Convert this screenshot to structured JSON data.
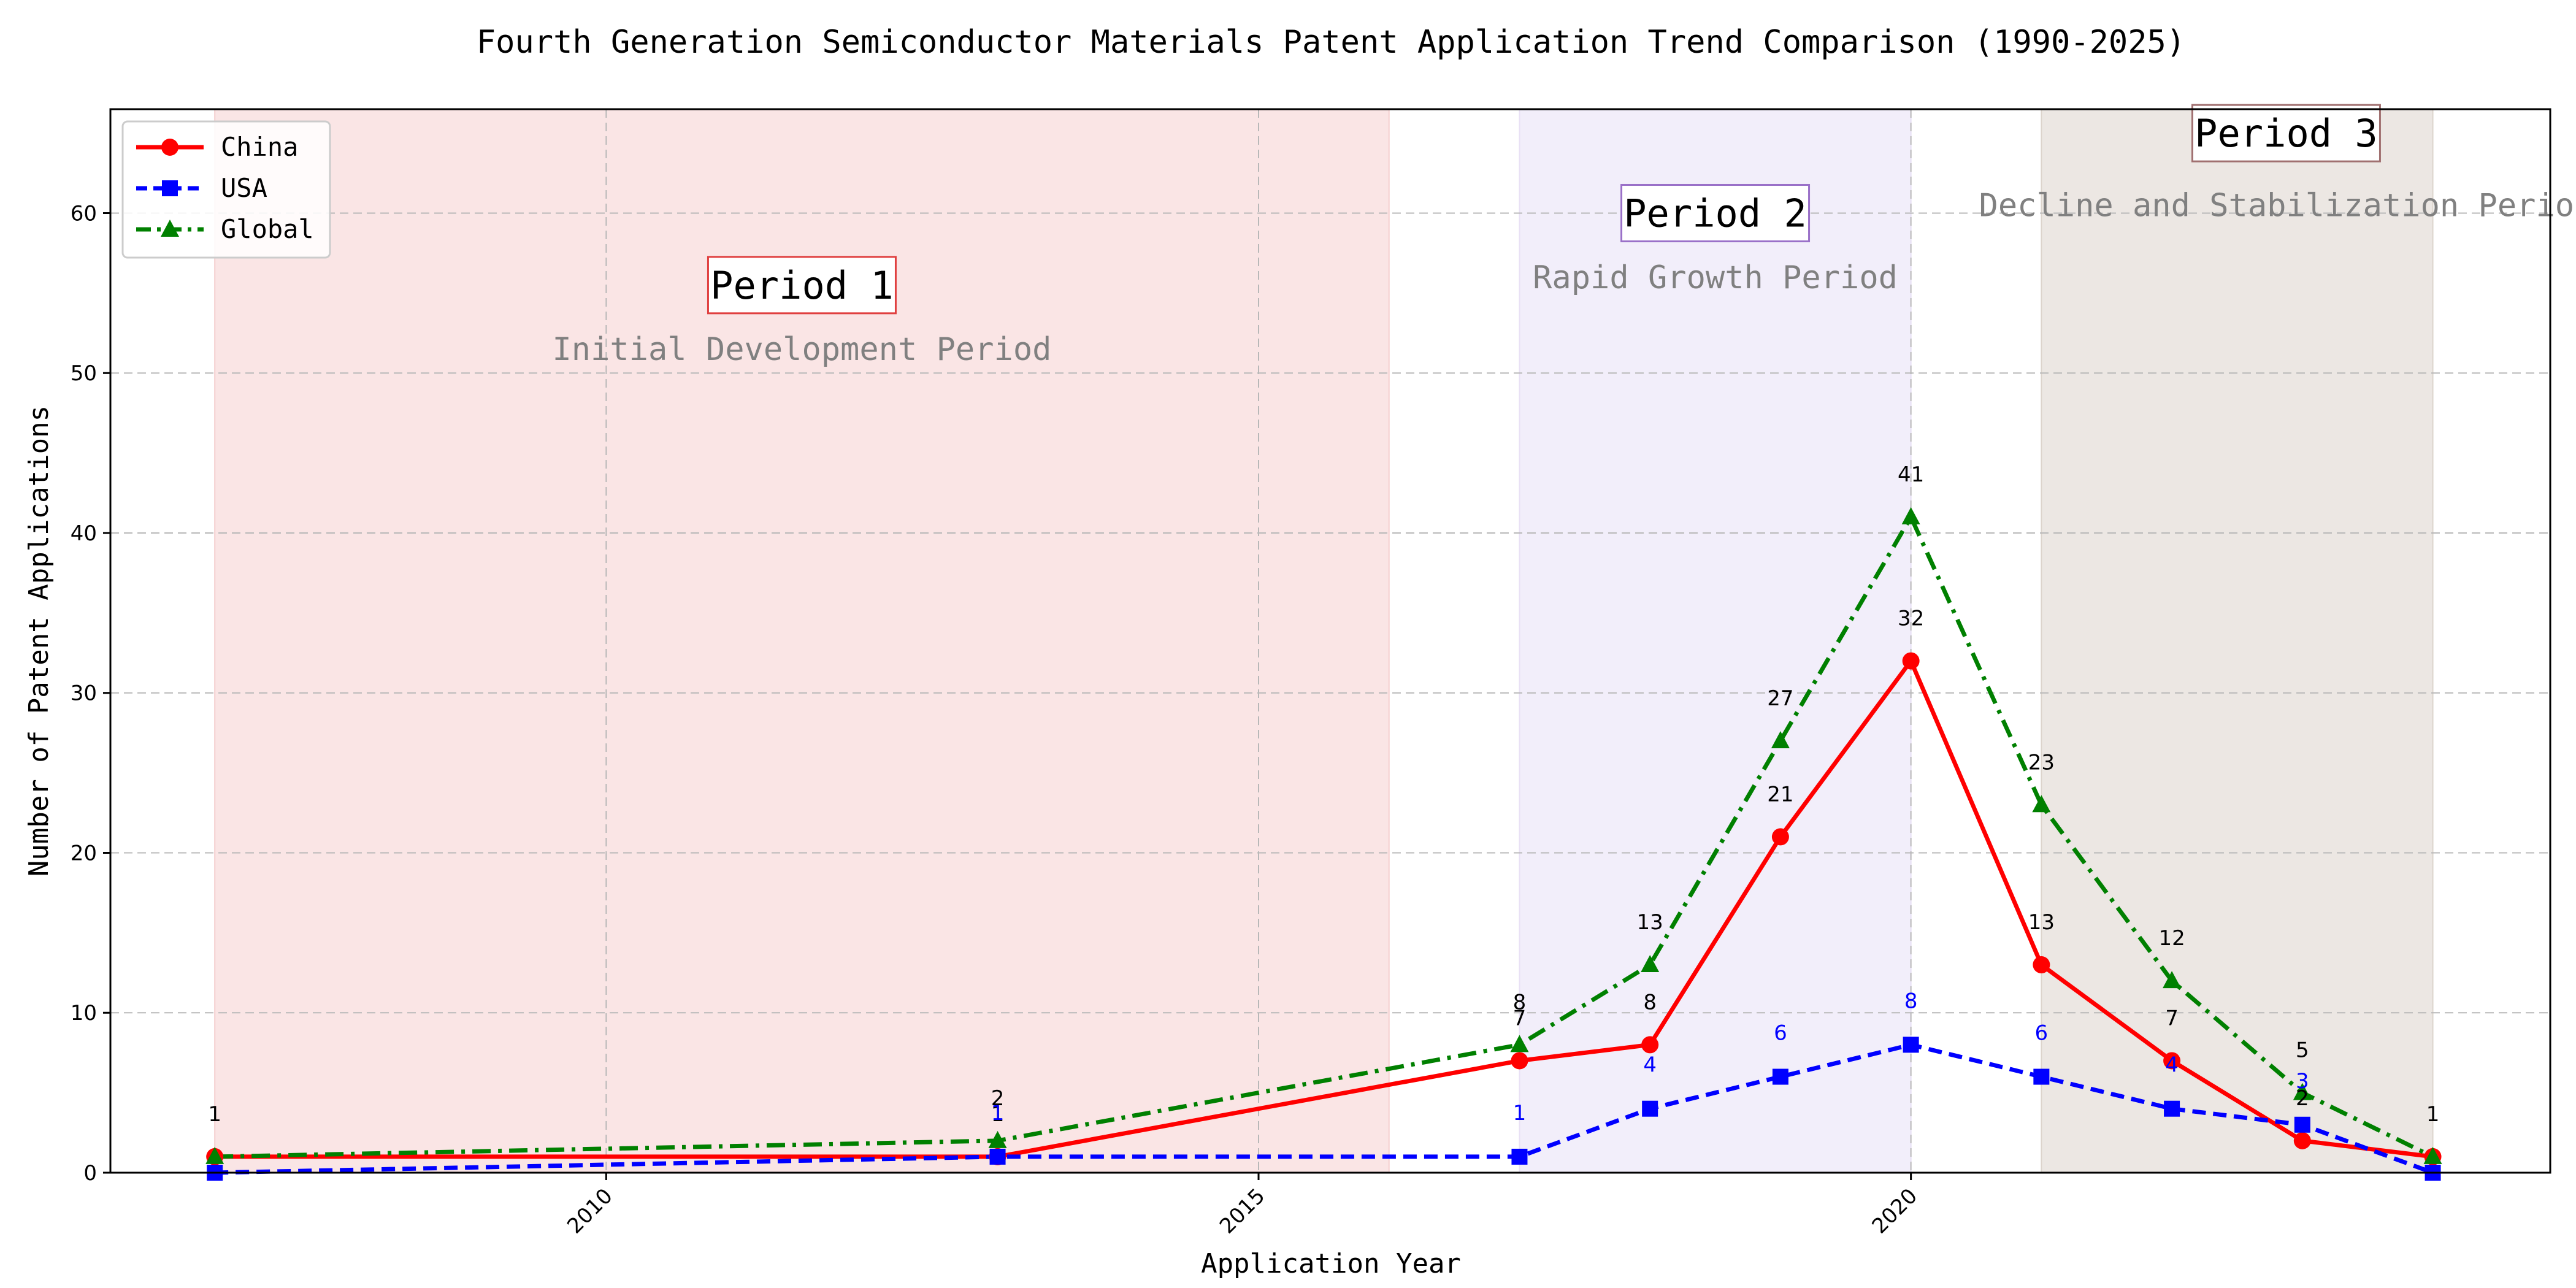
{
  "chart_data": {
    "type": "line",
    "title": "Fourth Generation Semiconductor Materials Patent Application Trend Comparison (1990-2025)",
    "xlabel": "Application Year",
    "ylabel": "Number of Patent Applications",
    "xlim": [
      2006.2,
      2024.9
    ],
    "ylim": [
      0,
      66.5
    ],
    "xticks": [
      2010,
      2015,
      2020
    ],
    "xtick_labels": [
      "2010",
      "2015",
      "2020"
    ],
    "yticks": [
      0,
      10,
      20,
      30,
      40,
      50,
      60
    ],
    "ytick_labels": [
      "0",
      "10",
      "20",
      "30",
      "40",
      "50",
      "60"
    ],
    "grid": true,
    "legend_position": "top-left",
    "series": [
      {
        "name": "China",
        "color": "#ff0000",
        "line_style": "solid",
        "marker": "circle",
        "points": [
          [
            2007,
            1
          ],
          [
            2013,
            1
          ],
          [
            2017,
            7
          ],
          [
            2018,
            8
          ],
          [
            2019,
            21
          ],
          [
            2020,
            32
          ],
          [
            2021,
            13
          ],
          [
            2022,
            7
          ],
          [
            2023,
            2
          ],
          [
            2024,
            1
          ]
        ],
        "labels": [
          {
            "x": 2007,
            "y": 1,
            "text": "1"
          },
          {
            "x": 2013,
            "y": 1,
            "text": "1"
          },
          {
            "x": 2017,
            "y": 7,
            "text": "7"
          },
          {
            "x": 2018,
            "y": 8,
            "text": "8"
          },
          {
            "x": 2019,
            "y": 21,
            "text": "21"
          },
          {
            "x": 2020,
            "y": 32,
            "text": "32"
          },
          {
            "x": 2021,
            "y": 13,
            "text": "13"
          },
          {
            "x": 2022,
            "y": 7,
            "text": "7"
          },
          {
            "x": 2023,
            "y": 2,
            "text": "2"
          },
          {
            "x": 2024,
            "y": 1,
            "text": "1"
          }
        ]
      },
      {
        "name": "USA",
        "color": "#0000ff",
        "line_style": "dashed",
        "marker": "square",
        "points": [
          [
            2007,
            0
          ],
          [
            2013,
            1
          ],
          [
            2017,
            1
          ],
          [
            2018,
            4
          ],
          [
            2019,
            6
          ],
          [
            2020,
            8
          ],
          [
            2021,
            6
          ],
          [
            2022,
            4
          ],
          [
            2023,
            3
          ],
          [
            2024,
            0
          ]
        ],
        "labels": [
          {
            "x": 2013,
            "y": 1,
            "text": "1"
          },
          {
            "x": 2017,
            "y": 1,
            "text": "1"
          },
          {
            "x": 2018,
            "y": 4,
            "text": "4"
          },
          {
            "x": 2019,
            "y": 6,
            "text": "6"
          },
          {
            "x": 2020,
            "y": 8,
            "text": "8"
          },
          {
            "x": 2021,
            "y": 6,
            "text": "6"
          },
          {
            "x": 2022,
            "y": 4,
            "text": "4"
          },
          {
            "x": 2023,
            "y": 3,
            "text": "3"
          }
        ]
      },
      {
        "name": "Global",
        "color": "#008000",
        "line_style": "dashdot",
        "marker": "triangle",
        "points": [
          [
            2007,
            1
          ],
          [
            2013,
            2
          ],
          [
            2017,
            8
          ],
          [
            2018,
            13
          ],
          [
            2019,
            27
          ],
          [
            2020,
            41
          ],
          [
            2021,
            23
          ],
          [
            2022,
            12
          ],
          [
            2023,
            5
          ],
          [
            2024,
            1
          ]
        ],
        "labels": [
          {
            "x": 2013,
            "y": 2,
            "text": "2"
          },
          {
            "x": 2017,
            "y": 8,
            "text": "8"
          },
          {
            "x": 2018,
            "y": 13,
            "text": "13"
          },
          {
            "x": 2019,
            "y": 27,
            "text": "27"
          },
          {
            "x": 2020,
            "y": 41,
            "text": "41"
          },
          {
            "x": 2021,
            "y": 23,
            "text": "23"
          },
          {
            "x": 2022,
            "y": 12,
            "text": "12"
          },
          {
            "x": 2023,
            "y": 5,
            "text": "5"
          }
        ]
      }
    ],
    "periods": [
      {
        "title": "Period 1",
        "subtitle": "Initial Development Period",
        "x_start": 2007,
        "x_end": 2016,
        "fill": "#f5cfcf",
        "border": "#e04040",
        "title_y": 55.5,
        "subtitle_y": 51.5
      },
      {
        "title": "Period 2",
        "subtitle": "Rapid Growth Period",
        "x_start": 2017,
        "x_end": 2020,
        "fill": "#e8e0f5",
        "border": "#9a70c8",
        "title_y": 60,
        "subtitle_y": 56
      },
      {
        "title": "Period 3",
        "subtitle": "Decline and Stabilization Period",
        "x_start": 2021,
        "x_end": 2024,
        "fill": "#dcd4cc",
        "border": "#a07070",
        "title_y": 65,
        "subtitle_y": 60.5
      }
    ]
  }
}
